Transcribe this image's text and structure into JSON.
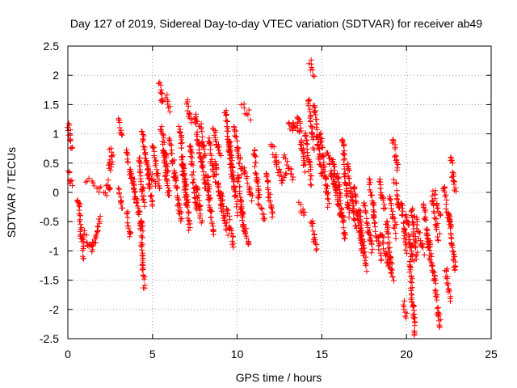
{
  "chart_data": {
    "type": "scatter",
    "title": "Day 127 of 2019, Sidereal Day-to-day VTEC variation (SDTVAR) for receiver ab49",
    "xlabel": "GPS time / hours",
    "ylabel": "SDTVAR / TECUs",
    "xlim": [
      0,
      25
    ],
    "ylim": [
      -2.5,
      2.5
    ],
    "xticks": [
      0,
      5,
      10,
      15,
      20,
      25
    ],
    "xtick_labels": [
      "0",
      "5",
      "10",
      "15",
      "20",
      "25"
    ],
    "yticks": [
      -2.5,
      -2,
      -1.5,
      -1,
      -0.5,
      0,
      0.5,
      1,
      1.5,
      2,
      2.5
    ],
    "ytick_labels": [
      "-2.5",
      "-2",
      "-1.5",
      "-1",
      "-0.5",
      "0",
      "0.5",
      "1",
      "1.5",
      "2",
      "2.5"
    ],
    "grid": true,
    "marker": "+",
    "color": "#ff0000",
    "series": [
      {
        "name": "SDTVAR",
        "segments": [
          {
            "x0": 0.0,
            "x1": 0.25,
            "y0": 1.15,
            "y1": 0.75
          },
          {
            "x0": 0.0,
            "x1": 0.25,
            "y0": 0.35,
            "y1": 0.15
          },
          {
            "x0": 0.6,
            "x1": 0.95,
            "y0": -0.1,
            "y1": -1.15
          },
          {
            "x0": 0.95,
            "x1": 1.45,
            "y0": -0.7,
            "y1": -1.0
          },
          {
            "x0": 1.45,
            "x1": 1.9,
            "y0": -1.0,
            "y1": -0.4
          },
          {
            "x0": 1.1,
            "x1": 2.3,
            "y0": 0.2,
            "y1": 0.0
          },
          {
            "x0": 2.3,
            "x1": 2.5,
            "y0": 0.15,
            "y1": 0.0
          },
          {
            "x0": 2.5,
            "x1": 2.65,
            "y0": 0.7,
            "y1": 0.55
          },
          {
            "x0": 2.45,
            "x1": 2.55,
            "y0": 0.5,
            "y1": 0.4
          },
          {
            "x0": 3.0,
            "x1": 3.2,
            "y0": 1.25,
            "y1": 0.95
          },
          {
            "x0": 3.0,
            "x1": 3.2,
            "y0": 0.05,
            "y1": -0.3
          },
          {
            "x0": 3.5,
            "x1": 3.7,
            "y0": -0.35,
            "y1": -0.75
          },
          {
            "x0": 3.4,
            "x1": 4.0,
            "y0": 0.7,
            "y1": 0.0
          },
          {
            "x0": 3.7,
            "x1": 4.4,
            "y0": 0.3,
            "y1": -0.6
          },
          {
            "x0": 4.2,
            "x1": 4.5,
            "y0": 0.6,
            "y1": -0.2
          },
          {
            "x0": 4.3,
            "x1": 4.5,
            "y0": -0.5,
            "y1": -1.6
          },
          {
            "x0": 4.4,
            "x1": 4.5,
            "y0": 1.05,
            "y1": 0.8
          },
          {
            "x0": 4.5,
            "x1": 5.0,
            "y0": 0.75,
            "y1": -0.2
          },
          {
            "x0": 4.6,
            "x1": 5.2,
            "y0": 0.5,
            "y1": 0.1
          },
          {
            "x0": 5.0,
            "x1": 5.4,
            "y0": 0.8,
            "y1": 0.1
          },
          {
            "x0": 5.4,
            "x1": 5.6,
            "y0": 1.85,
            "y1": 1.5
          },
          {
            "x0": 5.5,
            "x1": 5.9,
            "y0": 1.1,
            "y1": 0.35
          },
          {
            "x0": 5.6,
            "x1": 6.0,
            "y0": 0.7,
            "y1": -0.1
          },
          {
            "x0": 5.8,
            "x1": 6.0,
            "y0": 1.65,
            "y1": 1.4
          },
          {
            "x0": 6.0,
            "x1": 6.4,
            "y0": 0.9,
            "y1": 0.2
          },
          {
            "x0": 6.3,
            "x1": 6.7,
            "y0": 0.3,
            "y1": -0.5
          },
          {
            "x0": 6.6,
            "x1": 7.0,
            "y0": 1.1,
            "y1": -0.2
          },
          {
            "x0": 6.8,
            "x1": 7.2,
            "y0": 0.5,
            "y1": -0.6
          },
          {
            "x0": 7.0,
            "x1": 7.3,
            "y0": 1.55,
            "y1": 1.2
          },
          {
            "x0": 7.2,
            "x1": 7.6,
            "y0": 0.8,
            "y1": -0.3
          },
          {
            "x0": 7.5,
            "x1": 7.9,
            "y0": 1.3,
            "y1": 0.5
          },
          {
            "x0": 7.6,
            "x1": 7.9,
            "y0": 0.1,
            "y1": -0.5
          },
          {
            "x0": 7.8,
            "x1": 8.1,
            "y0": 1.15,
            "y1": 0.6
          },
          {
            "x0": 7.9,
            "x1": 8.3,
            "y0": 0.5,
            "y1": -0.1
          },
          {
            "x0": 8.2,
            "x1": 8.6,
            "y0": 0.3,
            "y1": -0.7
          },
          {
            "x0": 8.3,
            "x1": 8.7,
            "y0": 0.9,
            "y1": 0.2
          },
          {
            "x0": 8.6,
            "x1": 9.0,
            "y0": 1.1,
            "y1": 0.6
          },
          {
            "x0": 8.7,
            "x1": 9.1,
            "y0": 0.5,
            "y1": -0.3
          },
          {
            "x0": 9.0,
            "x1": 9.4,
            "y0": 0.0,
            "y1": -0.7
          },
          {
            "x0": 9.3,
            "x1": 9.7,
            "y0": 1.4,
            "y1": 0.3
          },
          {
            "x0": 9.5,
            "x1": 10.0,
            "y0": 0.9,
            "y1": -0.3
          },
          {
            "x0": 9.4,
            "x1": 9.8,
            "y0": -0.3,
            "y1": -0.9
          },
          {
            "x0": 9.8,
            "x1": 10.3,
            "y0": 1.1,
            "y1": 0.3
          },
          {
            "x0": 10.0,
            "x1": 10.4,
            "y0": 0.3,
            "y1": -0.6
          },
          {
            "x0": 10.3,
            "x1": 10.8,
            "y0": 1.5,
            "y1": 1.3
          },
          {
            "x0": 10.4,
            "x1": 10.9,
            "y0": 0.4,
            "y1": -0.1
          },
          {
            "x0": 10.2,
            "x1": 10.7,
            "y0": -0.3,
            "y1": -0.9
          },
          {
            "x0": 11.0,
            "x1": 11.3,
            "y0": 0.7,
            "y1": -0.2
          },
          {
            "x0": 11.4,
            "x1": 11.6,
            "y0": -0.3,
            "y1": -0.5
          },
          {
            "x0": 11.7,
            "x1": 12.1,
            "y0": 0.3,
            "y1": -0.4
          },
          {
            "x0": 12.0,
            "x1": 12.4,
            "y0": 0.8,
            "y1": 0.5
          },
          {
            "x0": 12.3,
            "x1": 12.6,
            "y0": 0.5,
            "y1": 0.2
          },
          {
            "x0": 12.6,
            "x1": 13.0,
            "y0": 0.2,
            "y1": 0.4
          },
          {
            "x0": 12.8,
            "x1": 13.3,
            "y0": 0.6,
            "y1": 0.25
          },
          {
            "x0": 13.0,
            "x1": 13.3,
            "y0": 1.15,
            "y1": 1.05
          },
          {
            "x0": 13.3,
            "x1": 13.6,
            "y0": 1.15,
            "y1": 1.1
          },
          {
            "x0": 13.6,
            "x1": 14.0,
            "y0": 1.3,
            "y1": 0.4
          },
          {
            "x0": 13.7,
            "x1": 14.0,
            "y0": -0.2,
            "y1": -0.4
          },
          {
            "x0": 14.0,
            "x1": 14.4,
            "y0": 1.0,
            "y1": 0.2
          },
          {
            "x0": 14.2,
            "x1": 14.5,
            "y0": 1.6,
            "y1": 0.8
          },
          {
            "x0": 14.3,
            "x1": 14.5,
            "y0": 2.2,
            "y1": 2.0
          },
          {
            "x0": 14.4,
            "x1": 14.7,
            "y0": -0.5,
            "y1": -1.0
          },
          {
            "x0": 14.5,
            "x1": 15.0,
            "y0": 1.5,
            "y1": 0.3
          },
          {
            "x0": 14.9,
            "x1": 15.4,
            "y0": 1.0,
            "y1": -0.2
          },
          {
            "x0": 15.3,
            "x1": 15.8,
            "y0": 0.7,
            "y1": 0.0
          },
          {
            "x0": 15.6,
            "x1": 16.1,
            "y0": 0.6,
            "y1": -0.4
          },
          {
            "x0": 15.9,
            "x1": 16.4,
            "y0": 0.3,
            "y1": -0.8
          },
          {
            "x0": 16.2,
            "x1": 16.6,
            "y0": 0.9,
            "y1": -0.4
          },
          {
            "x0": 16.5,
            "x1": 17.0,
            "y0": 0.5,
            "y1": -0.6
          },
          {
            "x0": 16.9,
            "x1": 17.4,
            "y0": 0.1,
            "y1": -1.0
          },
          {
            "x0": 17.2,
            "x1": 17.6,
            "y0": -0.3,
            "y1": -1.3
          },
          {
            "x0": 17.5,
            "x1": 18.0,
            "y0": -0.2,
            "y1": -1.0
          },
          {
            "x0": 17.8,
            "x1": 18.1,
            "y0": 0.2,
            "y1": -0.4
          },
          {
            "x0": 18.0,
            "x1": 18.5,
            "y0": -0.4,
            "y1": -1.1
          },
          {
            "x0": 18.4,
            "x1": 18.7,
            "y0": 0.2,
            "y1": -0.3
          },
          {
            "x0": 18.5,
            "x1": 19.0,
            "y0": -0.7,
            "y1": -1.3
          },
          {
            "x0": 18.8,
            "x1": 19.2,
            "y0": -0.5,
            "y1": -1.5
          },
          {
            "x0": 19.2,
            "x1": 19.5,
            "y0": 0.9,
            "y1": 0.4
          },
          {
            "x0": 19.3,
            "x1": 19.6,
            "y0": 0.2,
            "y1": -0.3
          },
          {
            "x0": 19.0,
            "x1": 19.4,
            "y0": -0.1,
            "y1": -0.7
          },
          {
            "x0": 19.7,
            "x1": 20.0,
            "y0": -0.2,
            "y1": -1.0
          },
          {
            "x0": 19.8,
            "x1": 20.0,
            "y0": -1.9,
            "y1": -2.1
          },
          {
            "x0": 20.0,
            "x1": 20.4,
            "y0": -0.4,
            "y1": -1.2
          },
          {
            "x0": 20.2,
            "x1": 20.5,
            "y0": -1.2,
            "y1": -2.4
          },
          {
            "x0": 20.3,
            "x1": 20.6,
            "y0": -0.3,
            "y1": -1.1
          },
          {
            "x0": 20.5,
            "x1": 21.0,
            "y0": -0.4,
            "y1": -1.0
          },
          {
            "x0": 21.0,
            "x1": 21.4,
            "y0": -0.2,
            "y1": -1.1
          },
          {
            "x0": 21.3,
            "x1": 21.7,
            "y0": -0.8,
            "y1": -1.6
          },
          {
            "x0": 21.5,
            "x1": 21.9,
            "y0": -0.1,
            "y1": -0.8
          },
          {
            "x0": 21.7,
            "x1": 22.0,
            "y0": -1.7,
            "y1": -2.3
          },
          {
            "x0": 21.6,
            "x1": 22.0,
            "y0": 0.0,
            "y1": -0.4
          },
          {
            "x0": 22.2,
            "x1": 22.6,
            "y0": 0.1,
            "y1": -0.6
          },
          {
            "x0": 22.3,
            "x1": 22.6,
            "y0": -1.3,
            "y1": -1.8
          },
          {
            "x0": 22.5,
            "x1": 22.9,
            "y0": -0.4,
            "y1": -1.4
          },
          {
            "x0": 22.6,
            "x1": 22.9,
            "y0": 0.6,
            "y1": 0.0
          }
        ]
      }
    ]
  }
}
